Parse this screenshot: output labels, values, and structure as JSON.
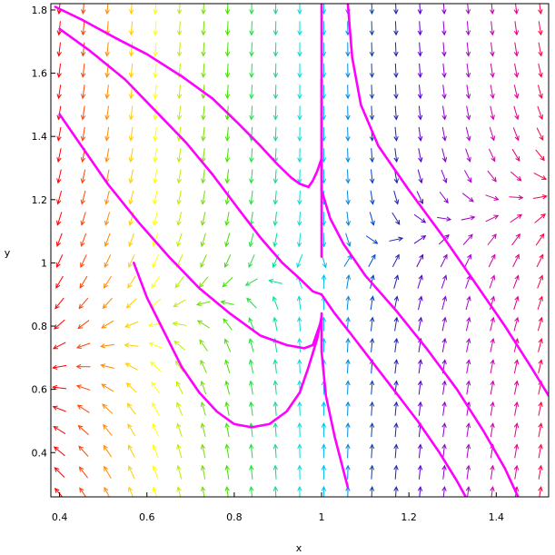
{
  "chart_data": {
    "type": "direction-field",
    "title": "",
    "xlabel": "x",
    "ylabel": "y",
    "xlim": [
      0.38,
      1.52
    ],
    "ylim": [
      0.26,
      1.82
    ],
    "x_ticks": [
      0.4,
      0.6,
      0.8,
      1.0,
      1.2,
      1.4
    ],
    "x_tick_labels": [
      "0.4",
      "0.6",
      "0.8",
      "1",
      "1.2",
      "1.4"
    ],
    "y_ticks": [
      0.4,
      0.6,
      0.8,
      1.0,
      1.2,
      1.4,
      1.6,
      1.8
    ],
    "y_tick_labels": [
      "0.4",
      "0.6",
      "0.8",
      "1",
      "1.2",
      "1.4",
      "1.6",
      "1.8"
    ],
    "grid": false,
    "field": {
      "x_range": [
        0.4,
        1.5
      ],
      "y_range": [
        0.27,
        1.81
      ],
      "columns": 21,
      "rows": 24,
      "colors_by_column": [
        "#ff0000",
        "#ff4400",
        "#ff8800",
        "#ffcc00",
        "#ffff00",
        "#bbee00",
        "#77dd00",
        "#44dd00",
        "#22dd44",
        "#00dd99",
        "#00dddd",
        "#00bbee",
        "#0088dd",
        "#0044cc",
        "#2222aa",
        "#5500cc",
        "#8800cc",
        "#aa00cc",
        "#cc00aa",
        "#dd0088",
        "#ff0044"
      ]
    },
    "curve_color": "#ff00ff",
    "series": [
      {
        "x": [
          0.39,
          0.45,
          0.53,
          0.6,
          0.68,
          0.75,
          0.81,
          0.86,
          0.9,
          0.93,
          0.95,
          0.97,
          0.98,
          0.99,
          1.0
        ],
        "y": [
          1.81,
          1.77,
          1.71,
          1.66,
          1.59,
          1.52,
          1.44,
          1.37,
          1.31,
          1.27,
          1.25,
          1.24,
          1.26,
          1.29,
          1.33
        ]
      },
      {
        "x": [
          0.4,
          0.47,
          0.55,
          0.62,
          0.69,
          0.75,
          0.81,
          0.86,
          0.91,
          0.95,
          0.98,
          1.0
        ],
        "y": [
          1.74,
          1.67,
          1.58,
          1.48,
          1.38,
          1.28,
          1.17,
          1.08,
          1.0,
          0.95,
          0.91,
          0.9
        ]
      },
      {
        "x": [
          0.4,
          0.45,
          0.51,
          0.58,
          0.65,
          0.72,
          0.79,
          0.86,
          0.92,
          0.96,
          0.98,
          0.99,
          1.0
        ],
        "y": [
          1.47,
          1.37,
          1.25,
          1.13,
          1.02,
          0.92,
          0.84,
          0.77,
          0.74,
          0.73,
          0.74,
          0.78,
          0.82
        ]
      },
      {
        "x": [
          0.57,
          0.6,
          0.64,
          0.68,
          0.72,
          0.76,
          0.8,
          0.84,
          0.88,
          0.92,
          0.95,
          0.97,
          0.99,
          1.0
        ],
        "y": [
          1.0,
          0.89,
          0.78,
          0.67,
          0.59,
          0.53,
          0.49,
          0.48,
          0.49,
          0.53,
          0.59,
          0.67,
          0.76,
          0.83
        ]
      },
      {
        "x": [
          1.0,
          1.0,
          1.0
        ],
        "y": [
          1.82,
          1.5,
          1.23
        ]
      },
      {
        "x": [
          1.0,
          1.0,
          1.0
        ],
        "y": [
          1.58,
          1.3,
          1.02
        ]
      },
      {
        "x": [
          1.0,
          1.0,
          1.01,
          1.03,
          1.06
        ],
        "y": [
          0.84,
          0.72,
          0.58,
          0.45,
          0.29
        ]
      },
      {
        "x": [
          1.06,
          1.07,
          1.09,
          1.13,
          1.2,
          1.28,
          1.35,
          1.42,
          1.48,
          1.52
        ],
        "y": [
          1.82,
          1.65,
          1.5,
          1.37,
          1.23,
          1.08,
          0.94,
          0.8,
          0.67,
          0.58
        ]
      },
      {
        "x": [
          1.0,
          1.02,
          1.05,
          1.1,
          1.17,
          1.24,
          1.31,
          1.37,
          1.42,
          1.45
        ],
        "y": [
          1.23,
          1.14,
          1.06,
          0.96,
          0.85,
          0.73,
          0.6,
          0.47,
          0.35,
          0.26
        ]
      },
      {
        "x": [
          1.0,
          1.03,
          1.07,
          1.12,
          1.17,
          1.22,
          1.27,
          1.31,
          1.33
        ],
        "y": [
          0.9,
          0.84,
          0.77,
          0.68,
          0.59,
          0.5,
          0.4,
          0.31,
          0.26
        ]
      }
    ]
  }
}
